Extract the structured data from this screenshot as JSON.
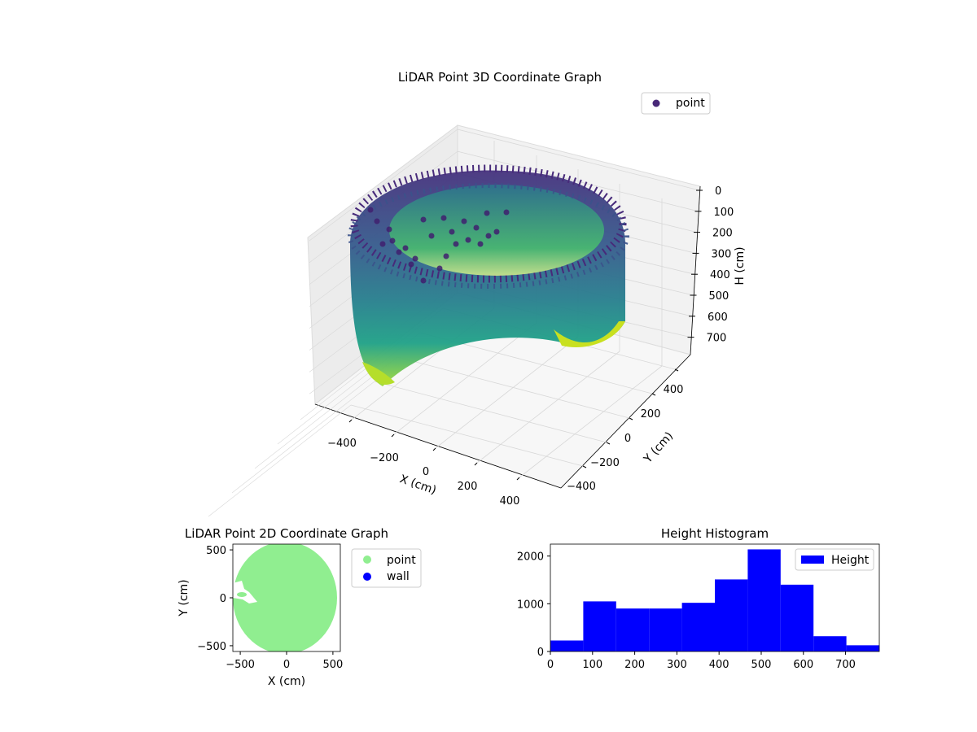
{
  "chart_data": [
    {
      "type": "scatter",
      "title": "LiDAR Point 3D Coordinate Graph",
      "xlabel": "X (cm)",
      "ylabel": "Y (cm)",
      "zlabel": "H (cm)",
      "x_ticks": [
        "−400",
        "−200",
        "0",
        "200",
        "400"
      ],
      "y_ticks": [
        "−400",
        "−200",
        "0",
        "200",
        "400"
      ],
      "z_ticks": [
        "0",
        "100",
        "200",
        "300",
        "400",
        "500",
        "600",
        "700"
      ],
      "xlim": [
        -560,
        560
      ],
      "ylim": [
        -560,
        560
      ],
      "zlim": [
        780,
        0
      ],
      "z_inverted": true,
      "legend": [
        "point"
      ],
      "legend_position": "top-right",
      "grid": true,
      "colormap": "viridis",
      "series": [
        {
          "name": "point",
          "color": "#482878"
        }
      ]
    },
    {
      "type": "scatter",
      "title": "LiDAR Point 2D Coordinate Graph",
      "xlabel": "X (cm)",
      "ylabel": "Y (cm)",
      "x_ticks": [
        "−500",
        "0",
        "500"
      ],
      "y_ticks": [
        "−500",
        "0",
        "500"
      ],
      "xlim": [
        -580,
        580
      ],
      "ylim": [
        -560,
        560
      ],
      "legend": [
        "point",
        "wall"
      ],
      "legend_position": "outside-right",
      "grid": false,
      "series": [
        {
          "name": "point",
          "color": "#90ee90"
        },
        {
          "name": "wall",
          "color": "#0000ff"
        }
      ]
    },
    {
      "type": "bar",
      "title": "Height Histogram",
      "xlabel": "",
      "ylabel": "",
      "x_ticks": [
        "0",
        "100",
        "200",
        "300",
        "400",
        "500",
        "600",
        "700"
      ],
      "y_ticks": [
        "0",
        "1000",
        "2000"
      ],
      "bin_edges": [
        0,
        78,
        156,
        234,
        312,
        390,
        468,
        546,
        624,
        702,
        780
      ],
      "values": [
        230,
        1050,
        900,
        900,
        1020,
        1510,
        2140,
        1400,
        320,
        130
      ],
      "xlim": [
        0,
        780
      ],
      "ylim": [
        0,
        2250
      ],
      "legend": [
        "Height"
      ],
      "legend_position": "top-right",
      "grid": false,
      "series": [
        {
          "name": "Height",
          "color": "#0000ff"
        }
      ]
    }
  ]
}
